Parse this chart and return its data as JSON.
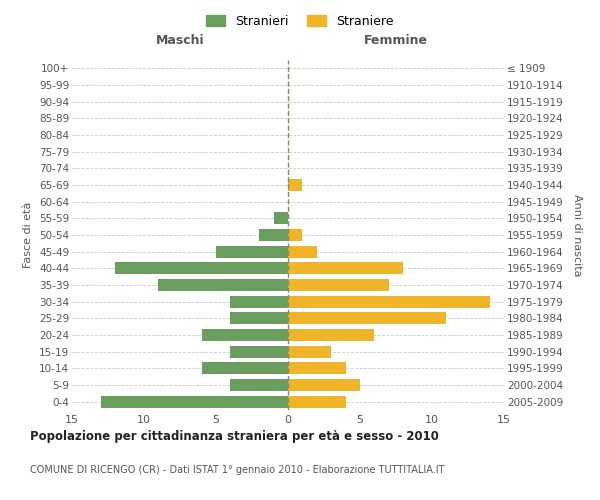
{
  "age_groups": [
    "0-4",
    "5-9",
    "10-14",
    "15-19",
    "20-24",
    "25-29",
    "30-34",
    "35-39",
    "40-44",
    "45-49",
    "50-54",
    "55-59",
    "60-64",
    "65-69",
    "70-74",
    "75-79",
    "80-84",
    "85-89",
    "90-94",
    "95-99",
    "100+"
  ],
  "birth_years": [
    "2005-2009",
    "2000-2004",
    "1995-1999",
    "1990-1994",
    "1985-1989",
    "1980-1984",
    "1975-1979",
    "1970-1974",
    "1965-1969",
    "1960-1964",
    "1955-1959",
    "1950-1954",
    "1945-1949",
    "1940-1944",
    "1935-1939",
    "1930-1934",
    "1925-1929",
    "1920-1924",
    "1915-1919",
    "1910-1914",
    "≤ 1909"
  ],
  "maschi": [
    13,
    4,
    6,
    4,
    6,
    4,
    4,
    9,
    12,
    5,
    2,
    1,
    0,
    0,
    0,
    0,
    0,
    0,
    0,
    0,
    0
  ],
  "femmine": [
    4,
    5,
    4,
    3,
    6,
    11,
    14,
    7,
    8,
    2,
    1,
    0,
    0,
    1,
    0,
    0,
    0,
    0,
    0,
    0,
    0
  ],
  "color_maschi": "#6a9e5e",
  "color_femmine": "#f0b429",
  "xlim": 15,
  "title": "Popolazione per cittadinanza straniera per età e sesso - 2010",
  "subtitle": "COMUNE DI RICENGO (CR) - Dati ISTAT 1° gennaio 2010 - Elaborazione TUTTITALIA.IT",
  "label_maschi": "Stranieri",
  "label_femmine": "Straniere",
  "xlabel_left": "Maschi",
  "xlabel_right": "Femmine",
  "ylabel_left": "Fasce di età",
  "ylabel_right": "Anni di nascita",
  "background_color": "#ffffff",
  "grid_color": "#cccccc"
}
